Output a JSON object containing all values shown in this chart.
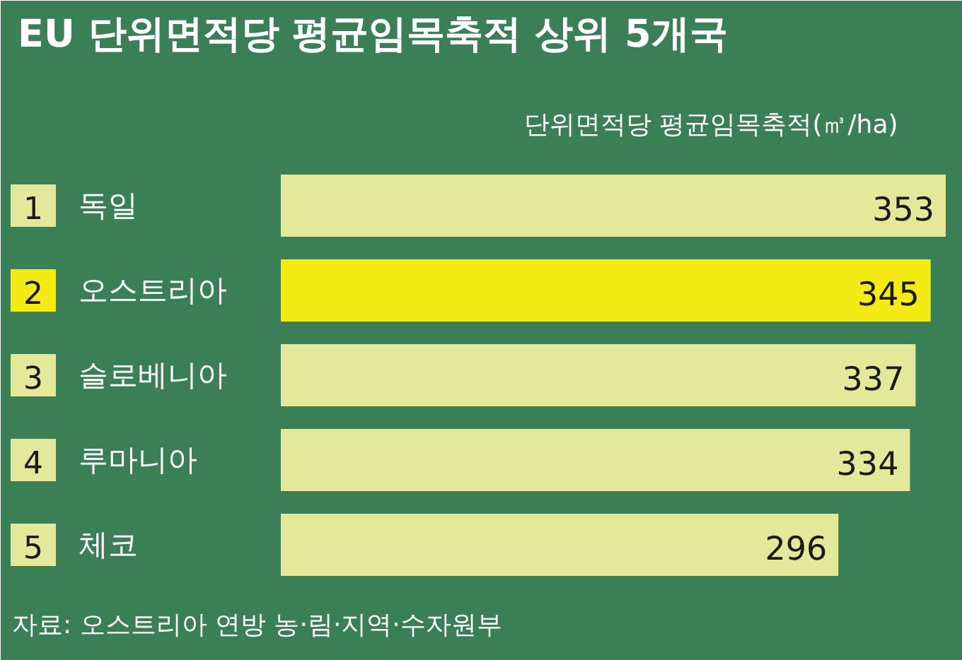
{
  "chart_data": {
    "type": "bar",
    "orientation": "horizontal",
    "title": "EU 단위면적당 평균임목축적 상위 5개국",
    "xlabel": "단위면적당 평균임목축적(㎥/ha)",
    "categories": [
      "1 독일",
      "2 오스트리아",
      "3 슬로베니아",
      "4 루마니아",
      "5 체코"
    ],
    "values": [
      353,
      345,
      337,
      334,
      296
    ],
    "colors": [
      "#e3e89a",
      "#f5eb14",
      "#e3e89a",
      "#e3e89a",
      "#e3e89a"
    ],
    "data_labels": true,
    "annotations": [
      "자료: 오스트리아 연방 농·림·지역·수자원부"
    ]
  }
}
